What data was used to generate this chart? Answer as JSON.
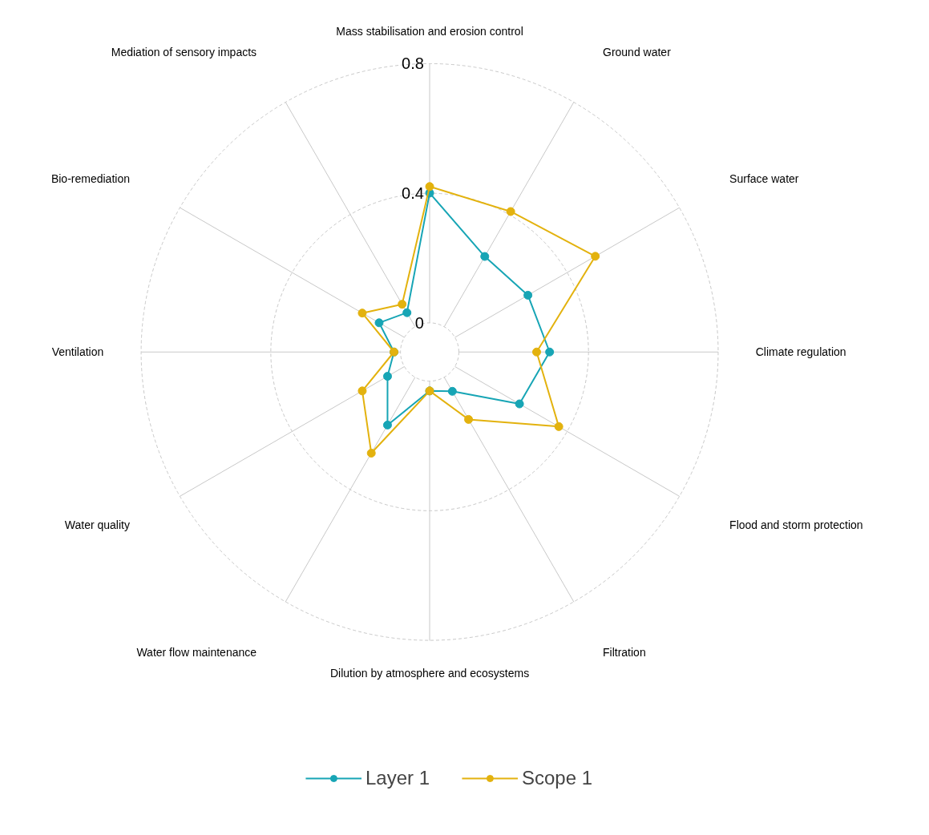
{
  "chart_data": {
    "type": "radar",
    "categories": [
      "Mass stabilisation and erosion control",
      "Ground water",
      "Surface water",
      "Climate regulation",
      "Flood and storm protection",
      "Filtration",
      "Dilution by atmosphere and ecosystems",
      "Water flow maintenance",
      "Water quality",
      "Ventilation",
      "Bio-remediation",
      "Mediation of sensory impacts"
    ],
    "series": [
      {
        "name": "Layer 1",
        "color": "#17a5b5",
        "values": [
          0.4,
          0.25,
          0.26,
          0.28,
          0.23,
          0.05,
          0.03,
          0.17,
          0.06,
          0.02,
          0.09,
          0.05
        ]
      },
      {
        "name": "Scope 1",
        "color": "#e3b20e",
        "values": [
          0.42,
          0.41,
          0.5,
          0.24,
          0.37,
          0.15,
          0.03,
          0.27,
          0.15,
          0.02,
          0.15,
          0.08
        ]
      }
    ],
    "ylim": [
      -0.09,
      0.8
    ],
    "yticks": [
      0,
      0.4,
      0.8
    ],
    "grid": true,
    "legend": "bottom",
    "marker": "circle",
    "line_style": "solid"
  }
}
